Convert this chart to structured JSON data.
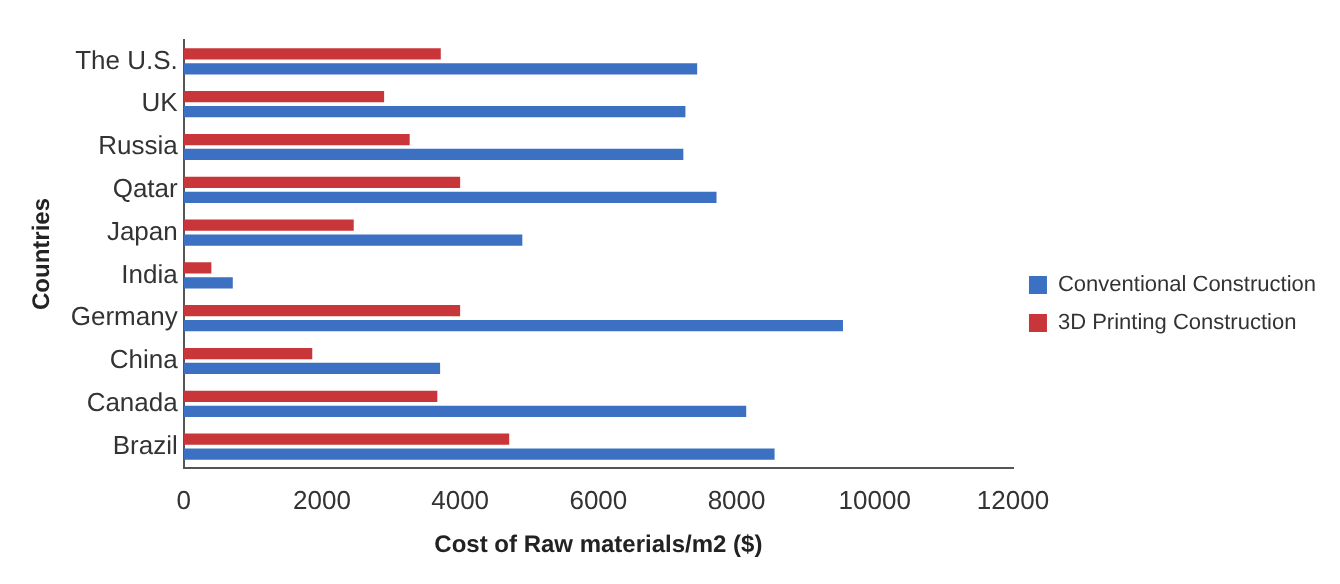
{
  "chart_data": {
    "type": "bar",
    "orientation": "horizontal",
    "xlabel": "Cost of Raw materials/m2 ($)",
    "ylabel": "Countries",
    "categories": [
      "The U.S.",
      "UK",
      "Russia",
      "Qatar",
      "Japan",
      "India",
      "Germany",
      "China",
      "Canada",
      "Brazil"
    ],
    "series": [
      {
        "name": "Conventional Construction",
        "color": "#3b70c2",
        "values": [
          7430,
          7260,
          7230,
          7710,
          4900,
          710,
          9540,
          3710,
          8140,
          8550
        ]
      },
      {
        "name": "3D Printing Construction",
        "color": "#c8363a",
        "values": [
          3720,
          2900,
          3270,
          4000,
          2460,
          400,
          4000,
          1860,
          3670,
          4710
        ]
      }
    ],
    "xlim": [
      0,
      12000
    ],
    "xticks": [
      0,
      2000,
      4000,
      6000,
      8000,
      10000,
      12000
    ],
    "grid": false,
    "legend": "right"
  }
}
